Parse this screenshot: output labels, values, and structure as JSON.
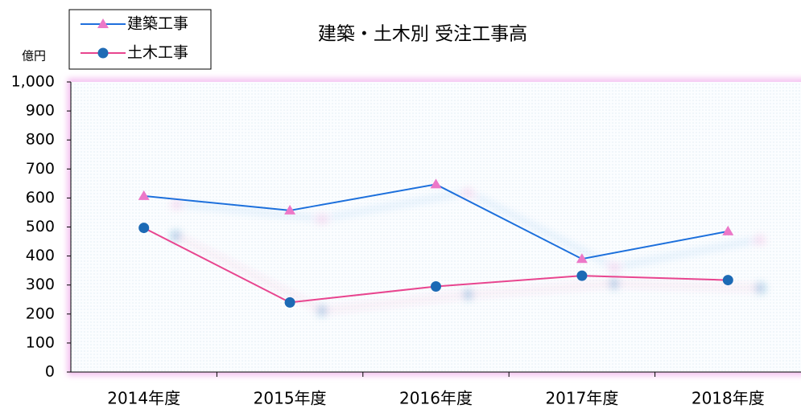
{
  "chart_data": {
    "type": "line",
    "title": "建築・土木別 受注工事高",
    "y_label": "億円",
    "categories": [
      "2014年度",
      "2015年度",
      "2016年度",
      "2017年度",
      "2018年度"
    ],
    "series": [
      {
        "name": "建築工事",
        "color": "#1f6fdc",
        "marker": "triangle",
        "marker_color": "#ec78c8",
        "values": [
          607,
          557,
          647,
          390,
          485
        ]
      },
      {
        "name": "土木工事",
        "color": "#e8458f",
        "marker": "circle",
        "marker_color": "#1f6bb5",
        "values": [
          497,
          240,
          295,
          332,
          317
        ]
      }
    ],
    "ylim": [
      0,
      1000
    ],
    "yticks": [
      0,
      100,
      200,
      300,
      400,
      500,
      600,
      700,
      800,
      900,
      {
        "value": 1000,
        "label": "1,000"
      }
    ],
    "legend": "top-left"
  }
}
